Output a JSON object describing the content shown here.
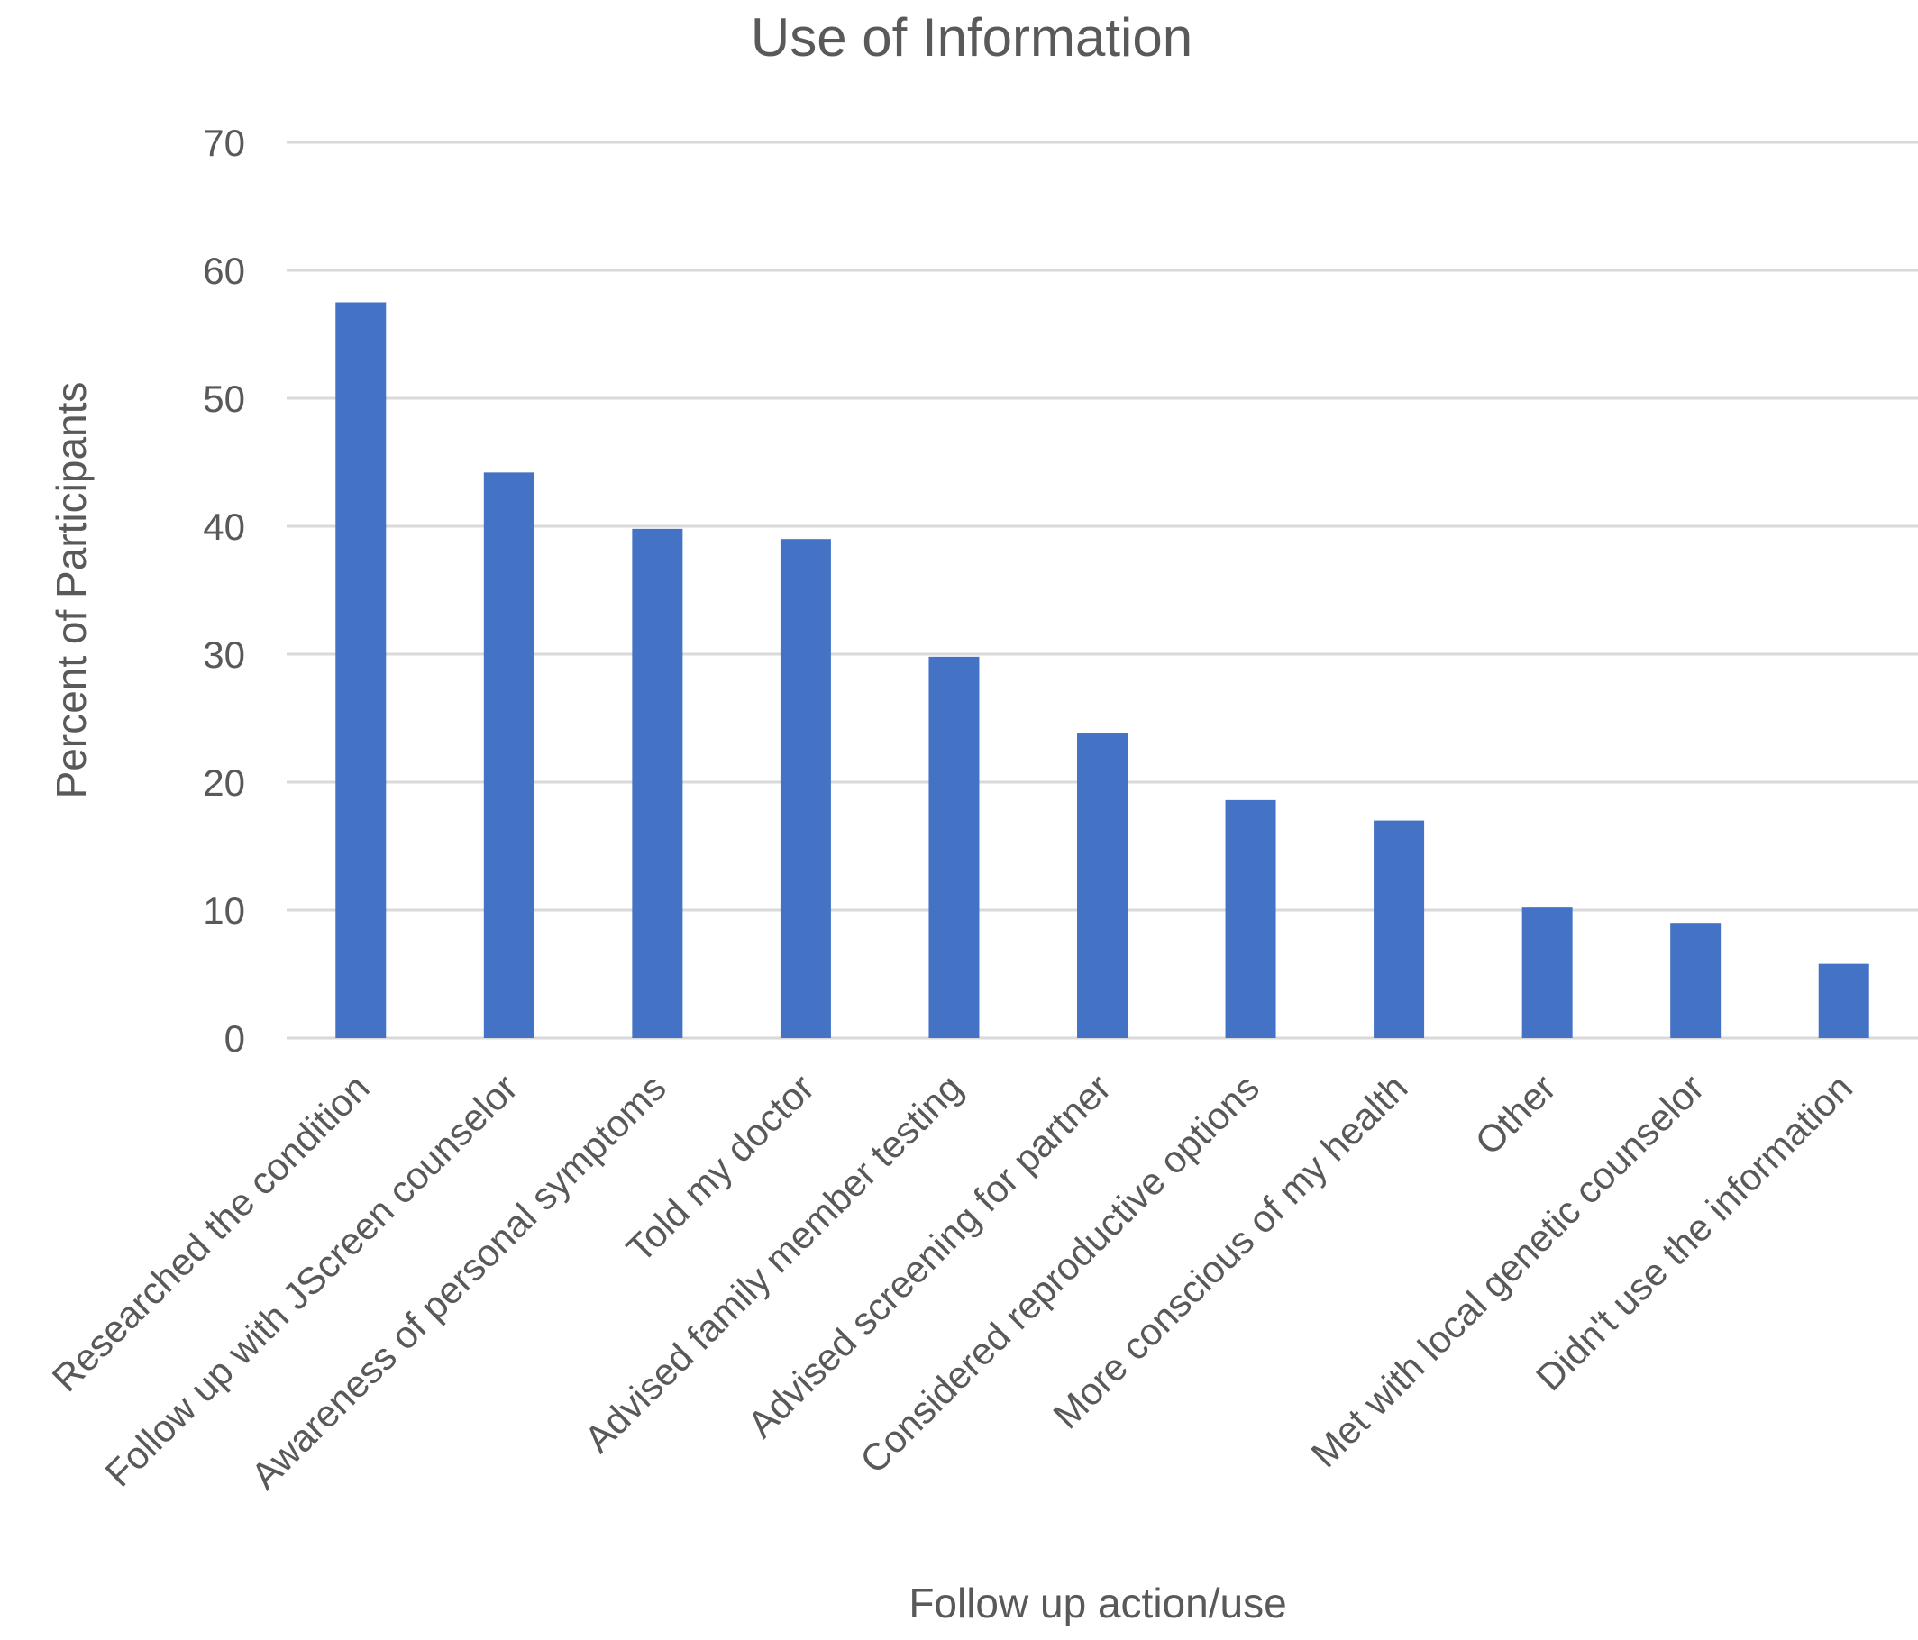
{
  "chart_data": {
    "type": "bar",
    "title": "Use of Information",
    "xlabel": "Follow up action/use",
    "ylabel": "Percent of Participants",
    "ylim": [
      0,
      70
    ],
    "yticks": [
      0,
      10,
      20,
      30,
      40,
      50,
      60,
      70
    ],
    "grid": true,
    "legend": "none",
    "bar_color": "#4472c4",
    "categories": [
      "Researched the condition",
      "Follow up with JScreen counselor",
      "Awareness of personal symptoms",
      "Told my doctor",
      "Advised family member testing",
      "Advised screening for partner",
      "Considered reproductive options",
      "More conscious of my health",
      "Other",
      "Met with local genetic counselor",
      "Didn't use the information"
    ],
    "values": [
      57.5,
      44.2,
      39.8,
      39.0,
      29.8,
      23.8,
      18.6,
      17.0,
      10.2,
      9.0,
      5.8
    ]
  }
}
